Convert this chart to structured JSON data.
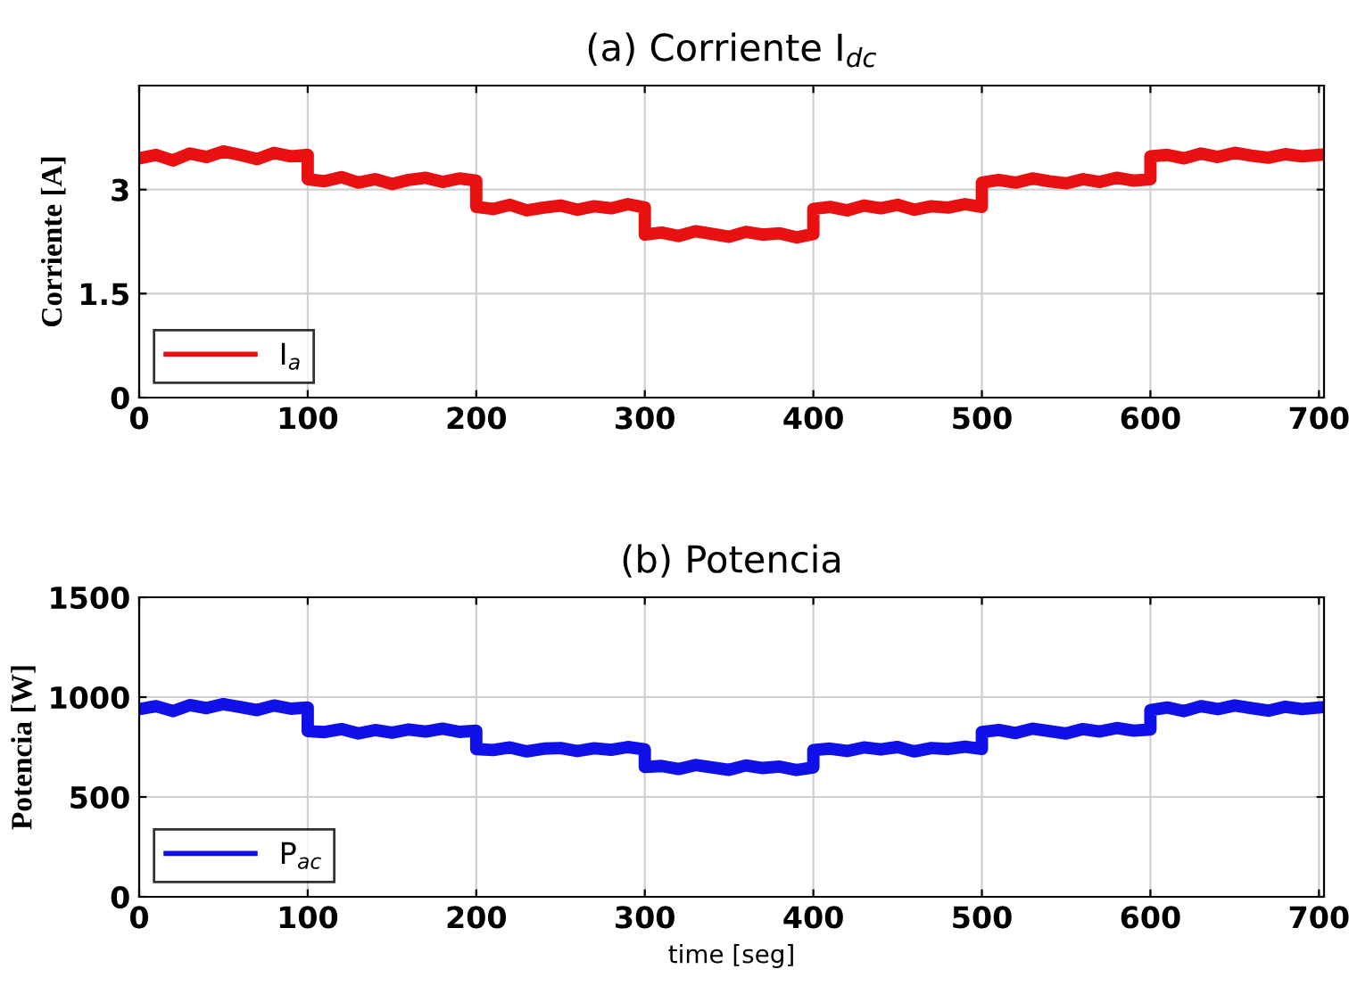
{
  "chart_data": [
    {
      "type": "line",
      "title": "(a) Corriente I$_{dc}$",
      "ylabel": "Corriente [A]",
      "xlim": [
        0,
        703
      ],
      "xticks": [
        0,
        100,
        200,
        300,
        400,
        500,
        600,
        700
      ],
      "ylim": [
        0,
        4.5
      ],
      "yticks": [
        0,
        1.5,
        3
      ],
      "grid": true,
      "legend": "bottom left",
      "x": [
        0,
        10,
        20,
        30,
        40,
        50,
        60,
        70,
        80,
        90,
        100,
        100,
        110,
        120,
        130,
        140,
        150,
        160,
        170,
        180,
        190,
        200,
        200,
        210,
        220,
        230,
        240,
        250,
        260,
        270,
        280,
        290,
        300,
        300,
        310,
        320,
        330,
        340,
        350,
        360,
        370,
        380,
        390,
        400,
        400,
        410,
        420,
        430,
        440,
        450,
        460,
        470,
        480,
        490,
        500,
        500,
        510,
        520,
        530,
        540,
        550,
        560,
        570,
        580,
        590,
        600,
        600,
        610,
        620,
        630,
        640,
        650,
        660,
        670,
        680,
        690,
        700
      ],
      "series": [
        {
          "name": "I$_{a}$",
          "color": "#e81010",
          "values": [
            3.45,
            3.5,
            3.42,
            3.52,
            3.47,
            3.55,
            3.5,
            3.44,
            3.53,
            3.48,
            3.5,
            3.15,
            3.12,
            3.18,
            3.1,
            3.15,
            3.08,
            3.14,
            3.17,
            3.11,
            3.16,
            3.13,
            2.75,
            2.72,
            2.78,
            2.7,
            2.74,
            2.77,
            2.71,
            2.76,
            2.73,
            2.79,
            2.74,
            2.35,
            2.38,
            2.33,
            2.4,
            2.36,
            2.32,
            2.39,
            2.35,
            2.37,
            2.31,
            2.36,
            2.72,
            2.75,
            2.7,
            2.77,
            2.73,
            2.78,
            2.71,
            2.76,
            2.74,
            2.79,
            2.75,
            3.1,
            3.14,
            3.1,
            3.16,
            3.12,
            3.09,
            3.15,
            3.11,
            3.17,
            3.13,
            3.15,
            3.48,
            3.5,
            3.45,
            3.52,
            3.47,
            3.53,
            3.49,
            3.46,
            3.51,
            3.48,
            3.5
          ]
        }
      ]
    },
    {
      "type": "line",
      "title": "(b) Potencia",
      "ylabel": "Potencia [W]",
      "xlabel": "time [seg]",
      "xlim": [
        0,
        703
      ],
      "xticks": [
        0,
        100,
        200,
        300,
        400,
        500,
        600,
        700
      ],
      "ylim": [
        0,
        1500
      ],
      "yticks": [
        0,
        500,
        1000,
        1500
      ],
      "grid": true,
      "legend": "bottom left",
      "x": [
        0,
        10,
        20,
        30,
        40,
        50,
        60,
        70,
        80,
        90,
        100,
        100,
        110,
        120,
        130,
        140,
        150,
        160,
        170,
        180,
        190,
        200,
        200,
        210,
        220,
        230,
        240,
        250,
        260,
        270,
        280,
        290,
        300,
        300,
        310,
        320,
        330,
        340,
        350,
        360,
        370,
        380,
        390,
        400,
        400,
        410,
        420,
        430,
        440,
        450,
        460,
        470,
        480,
        490,
        500,
        500,
        510,
        520,
        530,
        540,
        550,
        560,
        570,
        580,
        590,
        600,
        600,
        610,
        620,
        630,
        640,
        650,
        660,
        670,
        680,
        690,
        700
      ],
      "series": [
        {
          "name": "P$_{ac}$",
          "color": "#1010e8",
          "values": [
            940,
            955,
            930,
            960,
            945,
            965,
            950,
            935,
            958,
            942,
            948,
            830,
            825,
            840,
            818,
            835,
            822,
            838,
            828,
            842,
            826,
            832,
            740,
            735,
            748,
            728,
            742,
            745,
            730,
            744,
            736,
            750,
            738,
            650,
            655,
            640,
            660,
            648,
            636,
            658,
            645,
            652,
            635,
            648,
            735,
            742,
            730,
            748,
            738,
            750,
            728,
            745,
            740,
            752,
            740,
            825,
            835,
            820,
            842,
            830,
            818,
            840,
            828,
            845,
            832,
            838,
            935,
            948,
            930,
            955,
            940,
            958,
            945,
            932,
            952,
            940,
            948
          ]
        }
      ]
    }
  ]
}
